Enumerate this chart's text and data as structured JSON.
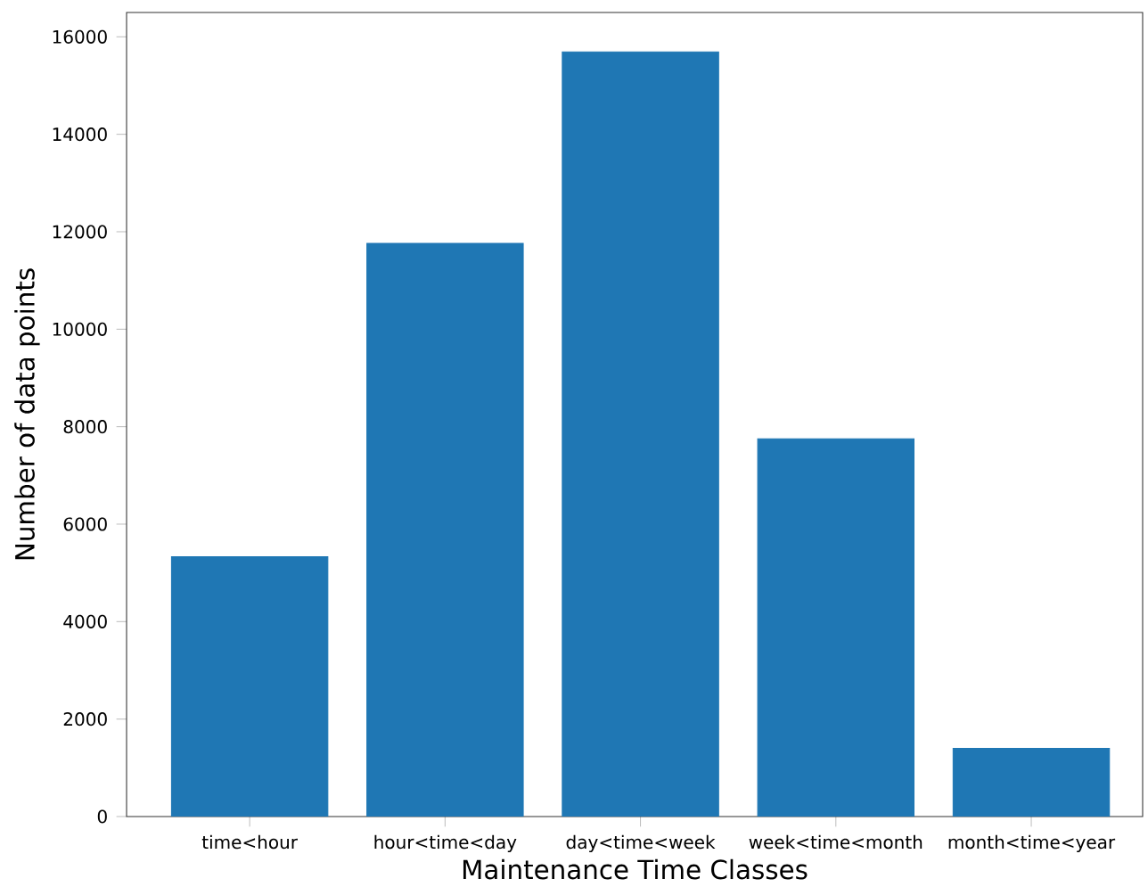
{
  "chart_data": {
    "type": "bar",
    "xlabel": "Maintenance Time Classes",
    "ylabel": "Number of data points",
    "categories": [
      "time<hour",
      "hour<time<day",
      "day<time<week",
      "week<time<month",
      "month<time<year"
    ],
    "values": [
      5330,
      11760,
      15690,
      7750,
      1400
    ],
    "color": "#1f77b4",
    "ylim": [
      0,
      16500
    ],
    "yticks": [
      0,
      2000,
      4000,
      6000,
      8000,
      10000,
      12000,
      14000,
      16000
    ],
    "grid": false
  }
}
